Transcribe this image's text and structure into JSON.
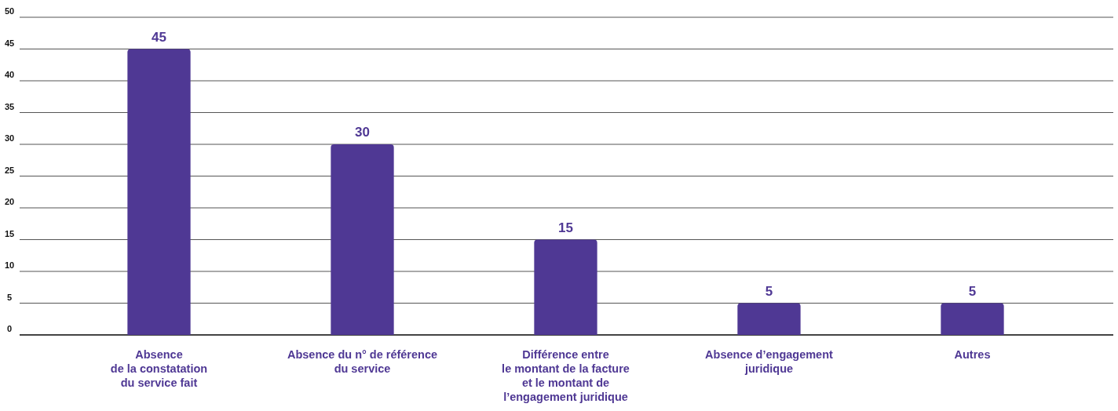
{
  "chart_data": {
    "type": "bar",
    "categories": [
      "Absence\nde la constatation\ndu service fait",
      "Absence du n° de référence\ndu service",
      "Différence entre\nle montant de la facture\net le montant de\nl’engagement juridique",
      "Absence d’engagement\njuridique",
      "Autres"
    ],
    "values": [
      45,
      30,
      15,
      5,
      5
    ],
    "color": "#4f3894",
    "ylim": [
      0,
      50
    ],
    "yticks": [
      0,
      5,
      10,
      15,
      20,
      25,
      30,
      35,
      40,
      45,
      50
    ],
    "grid": "y",
    "data_labels": true
  }
}
